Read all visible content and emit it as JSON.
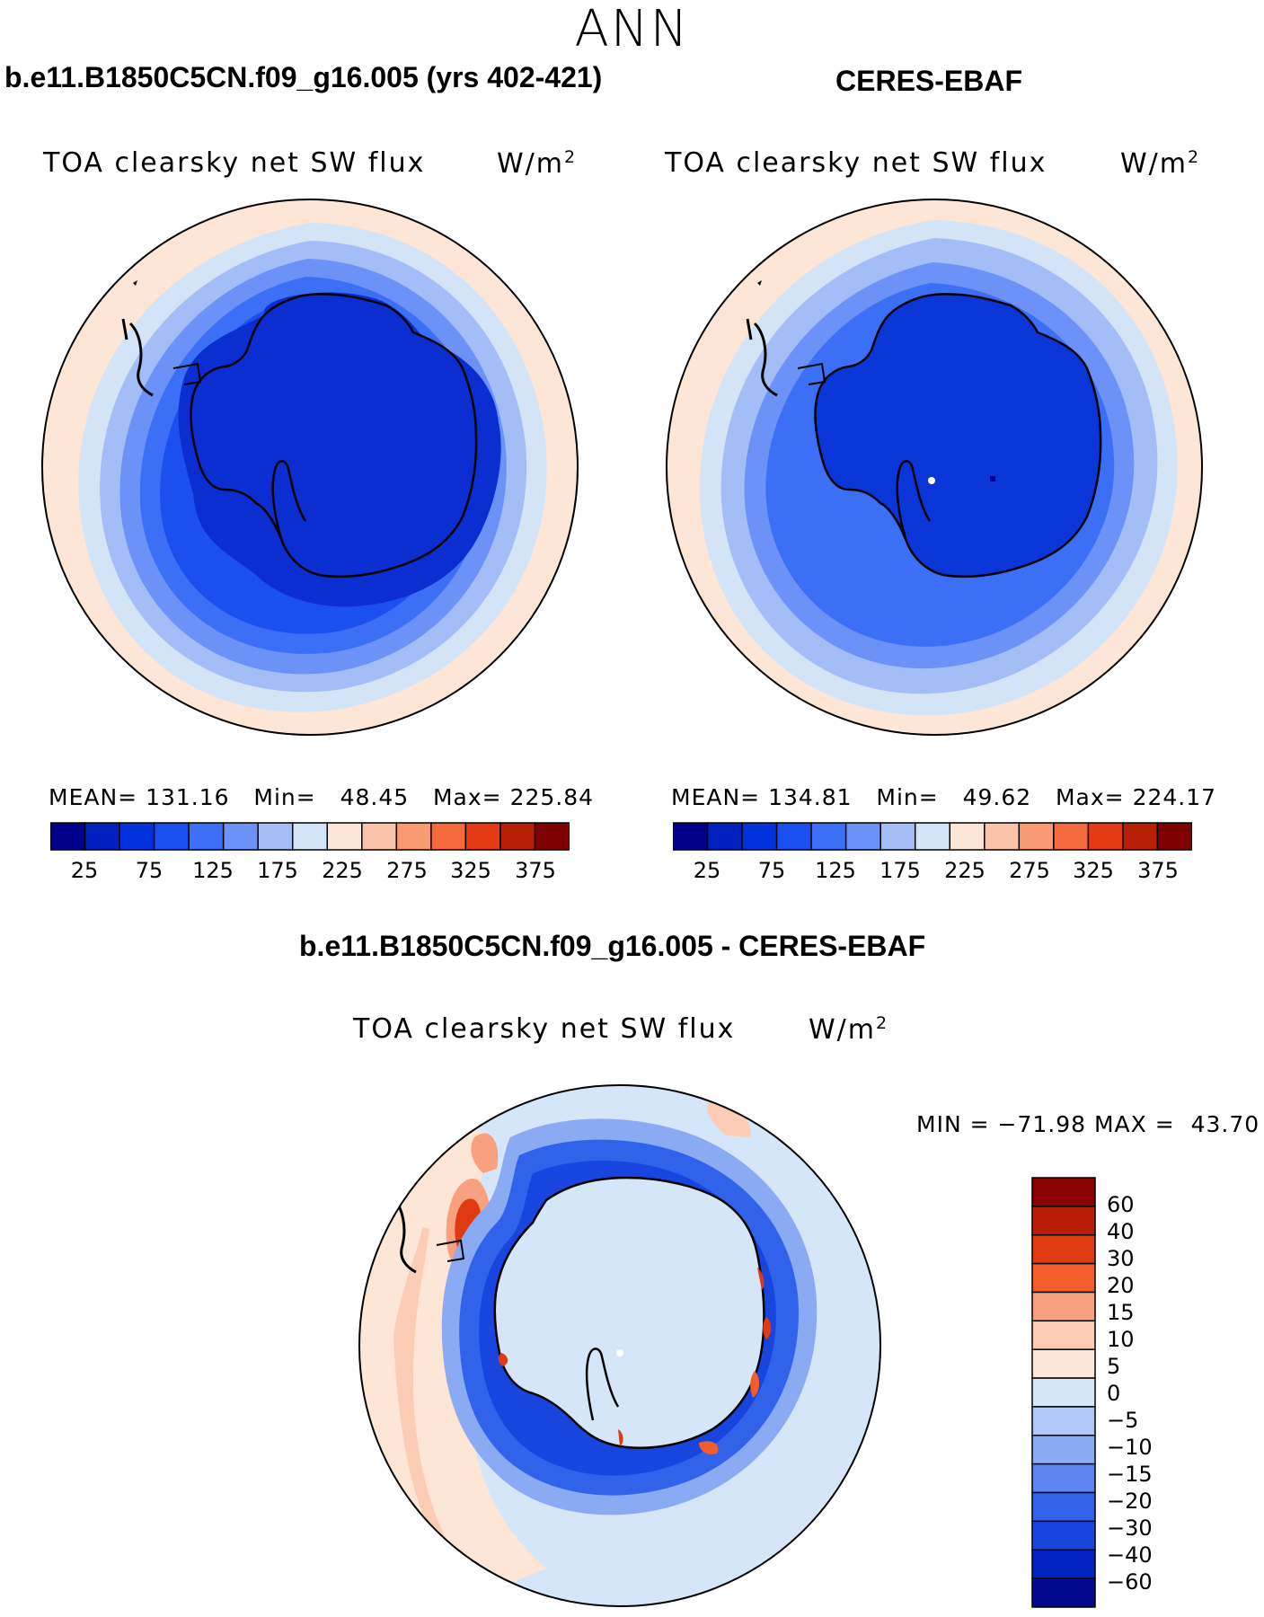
{
  "season": "ANN",
  "left_panel": {
    "header": "b.e11.B1850C5CN.f09_g16.005 (yrs 402-421)",
    "title": "TOA clearsky net SW flux",
    "units_base": "W/m",
    "units_exp": "2",
    "stats": {
      "mean_label": "MEAN=",
      "mean": "131.16",
      "min_label": "Min=",
      "min": "48.45",
      "max_label": "Max=",
      "max": "225.84"
    }
  },
  "right_panel": {
    "header": "CERES-EBAF",
    "title": "TOA clearsky net SW flux",
    "units_base": "W/m",
    "units_exp": "2",
    "stats": {
      "mean_label": "MEAN=",
      "mean": "134.81",
      "min_label": "Min=",
      "min": "49.62",
      "max_label": "Max=",
      "max": "224.17"
    }
  },
  "abs_colorbar": {
    "colors": [
      "#00008b",
      "#0020c0",
      "#0033dd",
      "#1a4ff0",
      "#3b6ff5",
      "#6d92f7",
      "#a3bef7",
      "#d4e4f7",
      "#fce6d8",
      "#fbc3a8",
      "#f99a72",
      "#f56a3c",
      "#e33c14",
      "#b82006",
      "#7e0000"
    ],
    "tick_labels": [
      "25",
      "75",
      "125",
      "175",
      "225",
      "275",
      "325",
      "375"
    ]
  },
  "diff_panel": {
    "header": "b.e11.B1850C5CN.f09_g16.005 - CERES-EBAF",
    "title": "TOA clearsky net SW flux",
    "units_base": "W/m",
    "units_exp": "2",
    "stats": {
      "min_label": "MIN =",
      "min": "−71.98",
      "max_label": "MAX =",
      "max": "43.70"
    }
  },
  "diff_colorbar": {
    "colors_top_to_bottom": [
      "#8b0000",
      "#b81d05",
      "#e03a12",
      "#f45c2c",
      "#f9a17e",
      "#fccdb4",
      "#fde6d6",
      "#d6e6f9",
      "#b0c8f6",
      "#8aaaf3",
      "#5c86ef",
      "#3163ea",
      "#1745de",
      "#0022bf",
      "#000a8a"
    ],
    "tick_labels_top_to_bottom": [
      "60",
      "40",
      "30",
      "20",
      "15",
      "10",
      "5",
      "0",
      "−5",
      "−10",
      "−15",
      "−20",
      "−30",
      "−40",
      "−60"
    ]
  },
  "fill_colors": {
    "ocean_outer": "#fde6d6",
    "land": "#0a2ecf",
    "land_ceres": "#0a36d8",
    "coast": "#000000",
    "diff_land": "#d6e6f9"
  }
}
